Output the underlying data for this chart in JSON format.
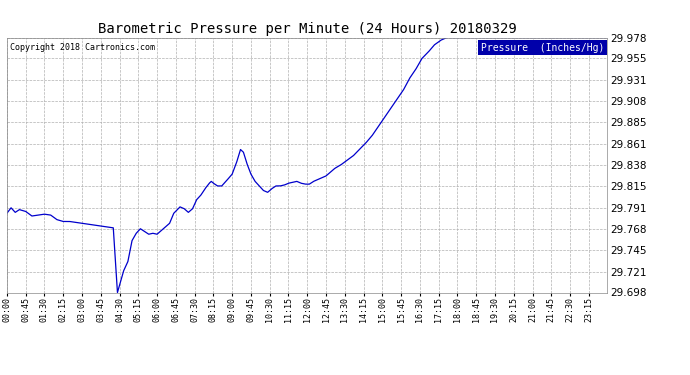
{
  "title": "Barometric Pressure per Minute (24 Hours) 20180329",
  "copyright": "Copyright 2018 Cartronics.com",
  "legend_label": "Pressure  (Inches/Hg)",
  "line_color": "#0000cc",
  "background_color": "#ffffff",
  "grid_color": "#b0b0b0",
  "ylim": [
    29.698,
    29.978
  ],
  "yticks": [
    29.698,
    29.721,
    29.745,
    29.768,
    29.791,
    29.815,
    29.838,
    29.861,
    29.885,
    29.908,
    29.931,
    29.955,
    29.978
  ],
  "x_labels": [
    "00:00",
    "00:45",
    "01:30",
    "02:15",
    "03:00",
    "03:45",
    "04:30",
    "05:15",
    "06:00",
    "06:45",
    "07:30",
    "08:15",
    "09:00",
    "09:45",
    "10:30",
    "11:15",
    "12:00",
    "12:45",
    "13:30",
    "14:15",
    "15:00",
    "15:45",
    "16:30",
    "17:15",
    "18:00",
    "18:45",
    "19:30",
    "20:15",
    "21:00",
    "21:45",
    "22:30",
    "23:15"
  ],
  "key_points": [
    [
      0,
      29.785
    ],
    [
      10,
      29.791
    ],
    [
      20,
      29.786
    ],
    [
      30,
      29.789
    ],
    [
      45,
      29.787
    ],
    [
      60,
      29.782
    ],
    [
      75,
      29.783
    ],
    [
      90,
      29.784
    ],
    [
      105,
      29.783
    ],
    [
      120,
      29.778
    ],
    [
      135,
      29.776
    ],
    [
      150,
      29.776
    ],
    [
      165,
      29.775
    ],
    [
      180,
      29.774
    ],
    [
      195,
      29.773
    ],
    [
      210,
      29.772
    ],
    [
      225,
      29.771
    ],
    [
      240,
      29.77
    ],
    [
      255,
      29.769
    ],
    [
      265,
      29.698
    ],
    [
      280,
      29.722
    ],
    [
      290,
      29.732
    ],
    [
      300,
      29.755
    ],
    [
      310,
      29.763
    ],
    [
      320,
      29.768
    ],
    [
      330,
      29.765
    ],
    [
      340,
      29.762
    ],
    [
      350,
      29.763
    ],
    [
      360,
      29.762
    ],
    [
      375,
      29.768
    ],
    [
      390,
      29.774
    ],
    [
      400,
      29.785
    ],
    [
      415,
      29.792
    ],
    [
      425,
      29.79
    ],
    [
      435,
      29.786
    ],
    [
      445,
      29.79
    ],
    [
      455,
      29.8
    ],
    [
      465,
      29.805
    ],
    [
      475,
      29.812
    ],
    [
      485,
      29.818
    ],
    [
      490,
      29.82
    ],
    [
      495,
      29.818
    ],
    [
      505,
      29.815
    ],
    [
      515,
      29.815
    ],
    [
      525,
      29.82
    ],
    [
      540,
      29.828
    ],
    [
      550,
      29.84
    ],
    [
      560,
      29.855
    ],
    [
      567,
      29.852
    ],
    [
      575,
      29.84
    ],
    [
      585,
      29.828
    ],
    [
      595,
      29.82
    ],
    [
      605,
      29.815
    ],
    [
      615,
      29.81
    ],
    [
      625,
      29.808
    ],
    [
      635,
      29.812
    ],
    [
      645,
      29.815
    ],
    [
      655,
      29.815
    ],
    [
      665,
      29.816
    ],
    [
      675,
      29.818
    ],
    [
      685,
      29.819
    ],
    [
      695,
      29.82
    ],
    [
      705,
      29.818
    ],
    [
      715,
      29.817
    ],
    [
      725,
      29.817
    ],
    [
      735,
      29.82
    ],
    [
      745,
      29.822
    ],
    [
      755,
      29.824
    ],
    [
      765,
      29.826
    ],
    [
      775,
      29.83
    ],
    [
      785,
      29.834
    ],
    [
      800,
      29.838
    ],
    [
      815,
      29.843
    ],
    [
      830,
      29.848
    ],
    [
      845,
      29.855
    ],
    [
      860,
      29.862
    ],
    [
      875,
      29.87
    ],
    [
      890,
      29.88
    ],
    [
      905,
      29.89
    ],
    [
      920,
      29.9
    ],
    [
      935,
      29.91
    ],
    [
      950,
      29.92
    ],
    [
      965,
      29.933
    ],
    [
      980,
      29.943
    ],
    [
      995,
      29.955
    ],
    [
      1010,
      29.962
    ],
    [
      1025,
      29.97
    ],
    [
      1040,
      29.975
    ],
    [
      1055,
      29.978
    ],
    [
      1440,
      29.978
    ]
  ]
}
